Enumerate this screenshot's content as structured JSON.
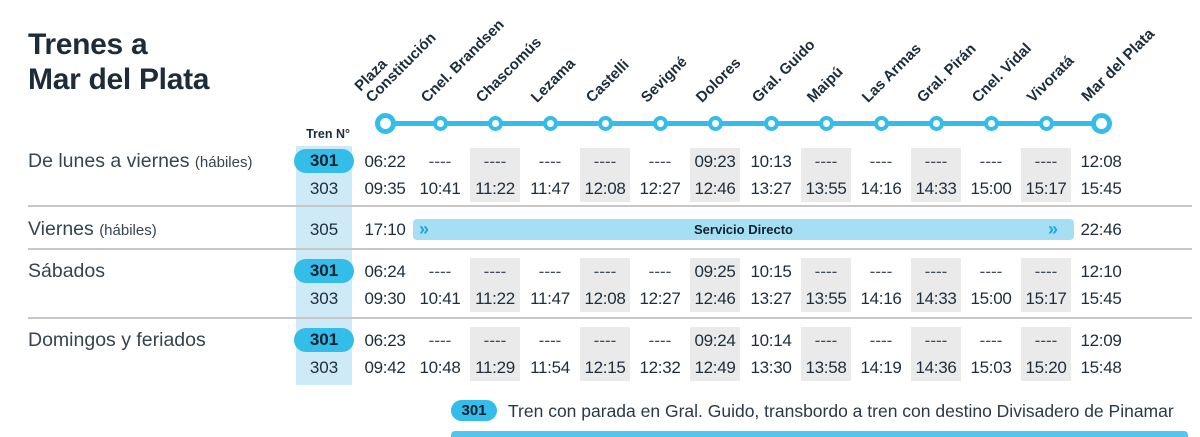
{
  "title": {
    "line1": "Trenes a",
    "line2": "Mar del Plata"
  },
  "tren_no_label": "Tren N°",
  "colors": {
    "accent": "#33bde8",
    "direct_band": "#a6dff4",
    "train_column": "#cfeaf7",
    "column_stripe": "#eaeaea",
    "navy": "#1d2b3a"
  },
  "stations": [
    "Plaza\nConstitución",
    "Cnel. Brandsen",
    "Chascomús",
    "Lezama",
    "Castelli",
    "Sevigné",
    "Dolores",
    "Gral. Guido",
    "Maipú",
    "Las Armas",
    "Gral. Pirán",
    "Cnel. Vidal",
    "Vivoratá",
    "Mar del Plata"
  ],
  "groups": [
    {
      "label": "De lunes a viernes",
      "label_suffix": "(hábiles)",
      "rows": [
        {
          "train": "301",
          "badge": true,
          "times": [
            "06:22",
            "----",
            "----",
            "----",
            "----",
            "----",
            "09:23",
            "10:13",
            "----",
            "----",
            "----",
            "----",
            "----",
            "12:08"
          ]
        },
        {
          "train": "303",
          "badge": false,
          "times": [
            "09:35",
            "10:41",
            "11:22",
            "11:47",
            "12:08",
            "12:27",
            "12:46",
            "13:27",
            "13:55",
            "14:16",
            "14:33",
            "15:00",
            "15:17",
            "15:45"
          ]
        }
      ]
    },
    {
      "label": "Viernes",
      "label_suffix": "(hábiles)",
      "rows": [
        {
          "train": "305",
          "badge": false,
          "direct": {
            "depart": "17:10",
            "band_label": "Servicio Directo",
            "arrive": "22:46",
            "chevron": "»"
          }
        }
      ]
    },
    {
      "label": "Sábados",
      "label_suffix": "",
      "rows": [
        {
          "train": "301",
          "badge": true,
          "times": [
            "06:24",
            "----",
            "----",
            "----",
            "----",
            "----",
            "09:25",
            "10:15",
            "----",
            "----",
            "----",
            "----",
            "----",
            "12:10"
          ]
        },
        {
          "train": "303",
          "badge": false,
          "times": [
            "09:30",
            "10:41",
            "11:22",
            "11:47",
            "12:08",
            "12:27",
            "12:46",
            "13:27",
            "13:55",
            "14:16",
            "14:33",
            "15:00",
            "15:17",
            "15:45"
          ]
        }
      ]
    },
    {
      "label": "Domingos y feriados",
      "label_suffix": "",
      "rows": [
        {
          "train": "301",
          "badge": true,
          "times": [
            "06:23",
            "----",
            "----",
            "----",
            "----",
            "----",
            "09:24",
            "10:14",
            "----",
            "----",
            "----",
            "----",
            "----",
            "12:09"
          ]
        },
        {
          "train": "303",
          "badge": false,
          "times": [
            "09:42",
            "10:48",
            "11:29",
            "11:54",
            "12:15",
            "12:32",
            "12:49",
            "13:30",
            "13:58",
            "14:19",
            "14:36",
            "15:03",
            "15:20",
            "15:48"
          ]
        }
      ]
    }
  ],
  "legend": {
    "badge": "301",
    "text": "Tren con parada en Gral. Guido, transbordo a tren con destino Divisadero de Pinamar"
  }
}
